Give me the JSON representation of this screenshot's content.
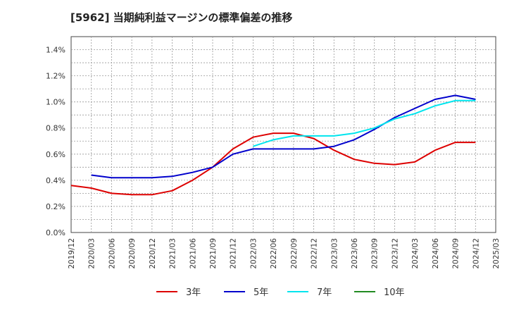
{
  "chart_data": {
    "type": "line",
    "title": "[5962]  当期純利益マージンの標準偏差の推移",
    "x": [
      "2019/12",
      "2020/03",
      "2020/06",
      "2020/09",
      "2020/12",
      "2021/03",
      "2021/06",
      "2021/09",
      "2021/12",
      "2022/03",
      "2022/06",
      "2022/09",
      "2022/12",
      "2023/03",
      "2023/06",
      "2023/09",
      "2023/12",
      "2024/03",
      "2024/06",
      "2024/09",
      "2024/12",
      "2025/03"
    ],
    "y_ticks": [
      "0.0%",
      "0.2%",
      "0.4%",
      "0.6%",
      "0.8%",
      "1.0%",
      "1.2%",
      "1.4%"
    ],
    "ylim": [
      0,
      0.015
    ],
    "grid": true,
    "legend_position": "bottom",
    "series": [
      {
        "name": "3年",
        "color": "#dd0000",
        "values": [
          0.36,
          0.34,
          0.3,
          0.29,
          0.29,
          0.32,
          0.4,
          0.5,
          0.64,
          0.73,
          0.76,
          0.76,
          0.72,
          0.63,
          0.56,
          0.53,
          0.52,
          0.54,
          0.63,
          0.69,
          0.69,
          null
        ]
      },
      {
        "name": "5年",
        "color": "#0000cc",
        "values": [
          null,
          0.44,
          0.42,
          0.42,
          0.42,
          0.43,
          0.46,
          0.5,
          0.6,
          0.64,
          0.64,
          0.64,
          0.64,
          0.66,
          0.71,
          0.79,
          0.88,
          0.95,
          1.02,
          1.05,
          1.02,
          null
        ]
      },
      {
        "name": "7年",
        "color": "#00e5ee",
        "values": [
          null,
          null,
          null,
          null,
          null,
          null,
          null,
          null,
          null,
          0.66,
          0.71,
          0.74,
          0.74,
          0.74,
          0.76,
          0.8,
          0.87,
          0.91,
          0.97,
          1.01,
          1.01,
          null
        ]
      },
      {
        "name": "10年",
        "color": "#228b22",
        "values": [
          null,
          null,
          null,
          null,
          null,
          null,
          null,
          null,
          null,
          null,
          null,
          null,
          null,
          null,
          null,
          null,
          null,
          null,
          null,
          null,
          null,
          null
        ]
      }
    ]
  }
}
